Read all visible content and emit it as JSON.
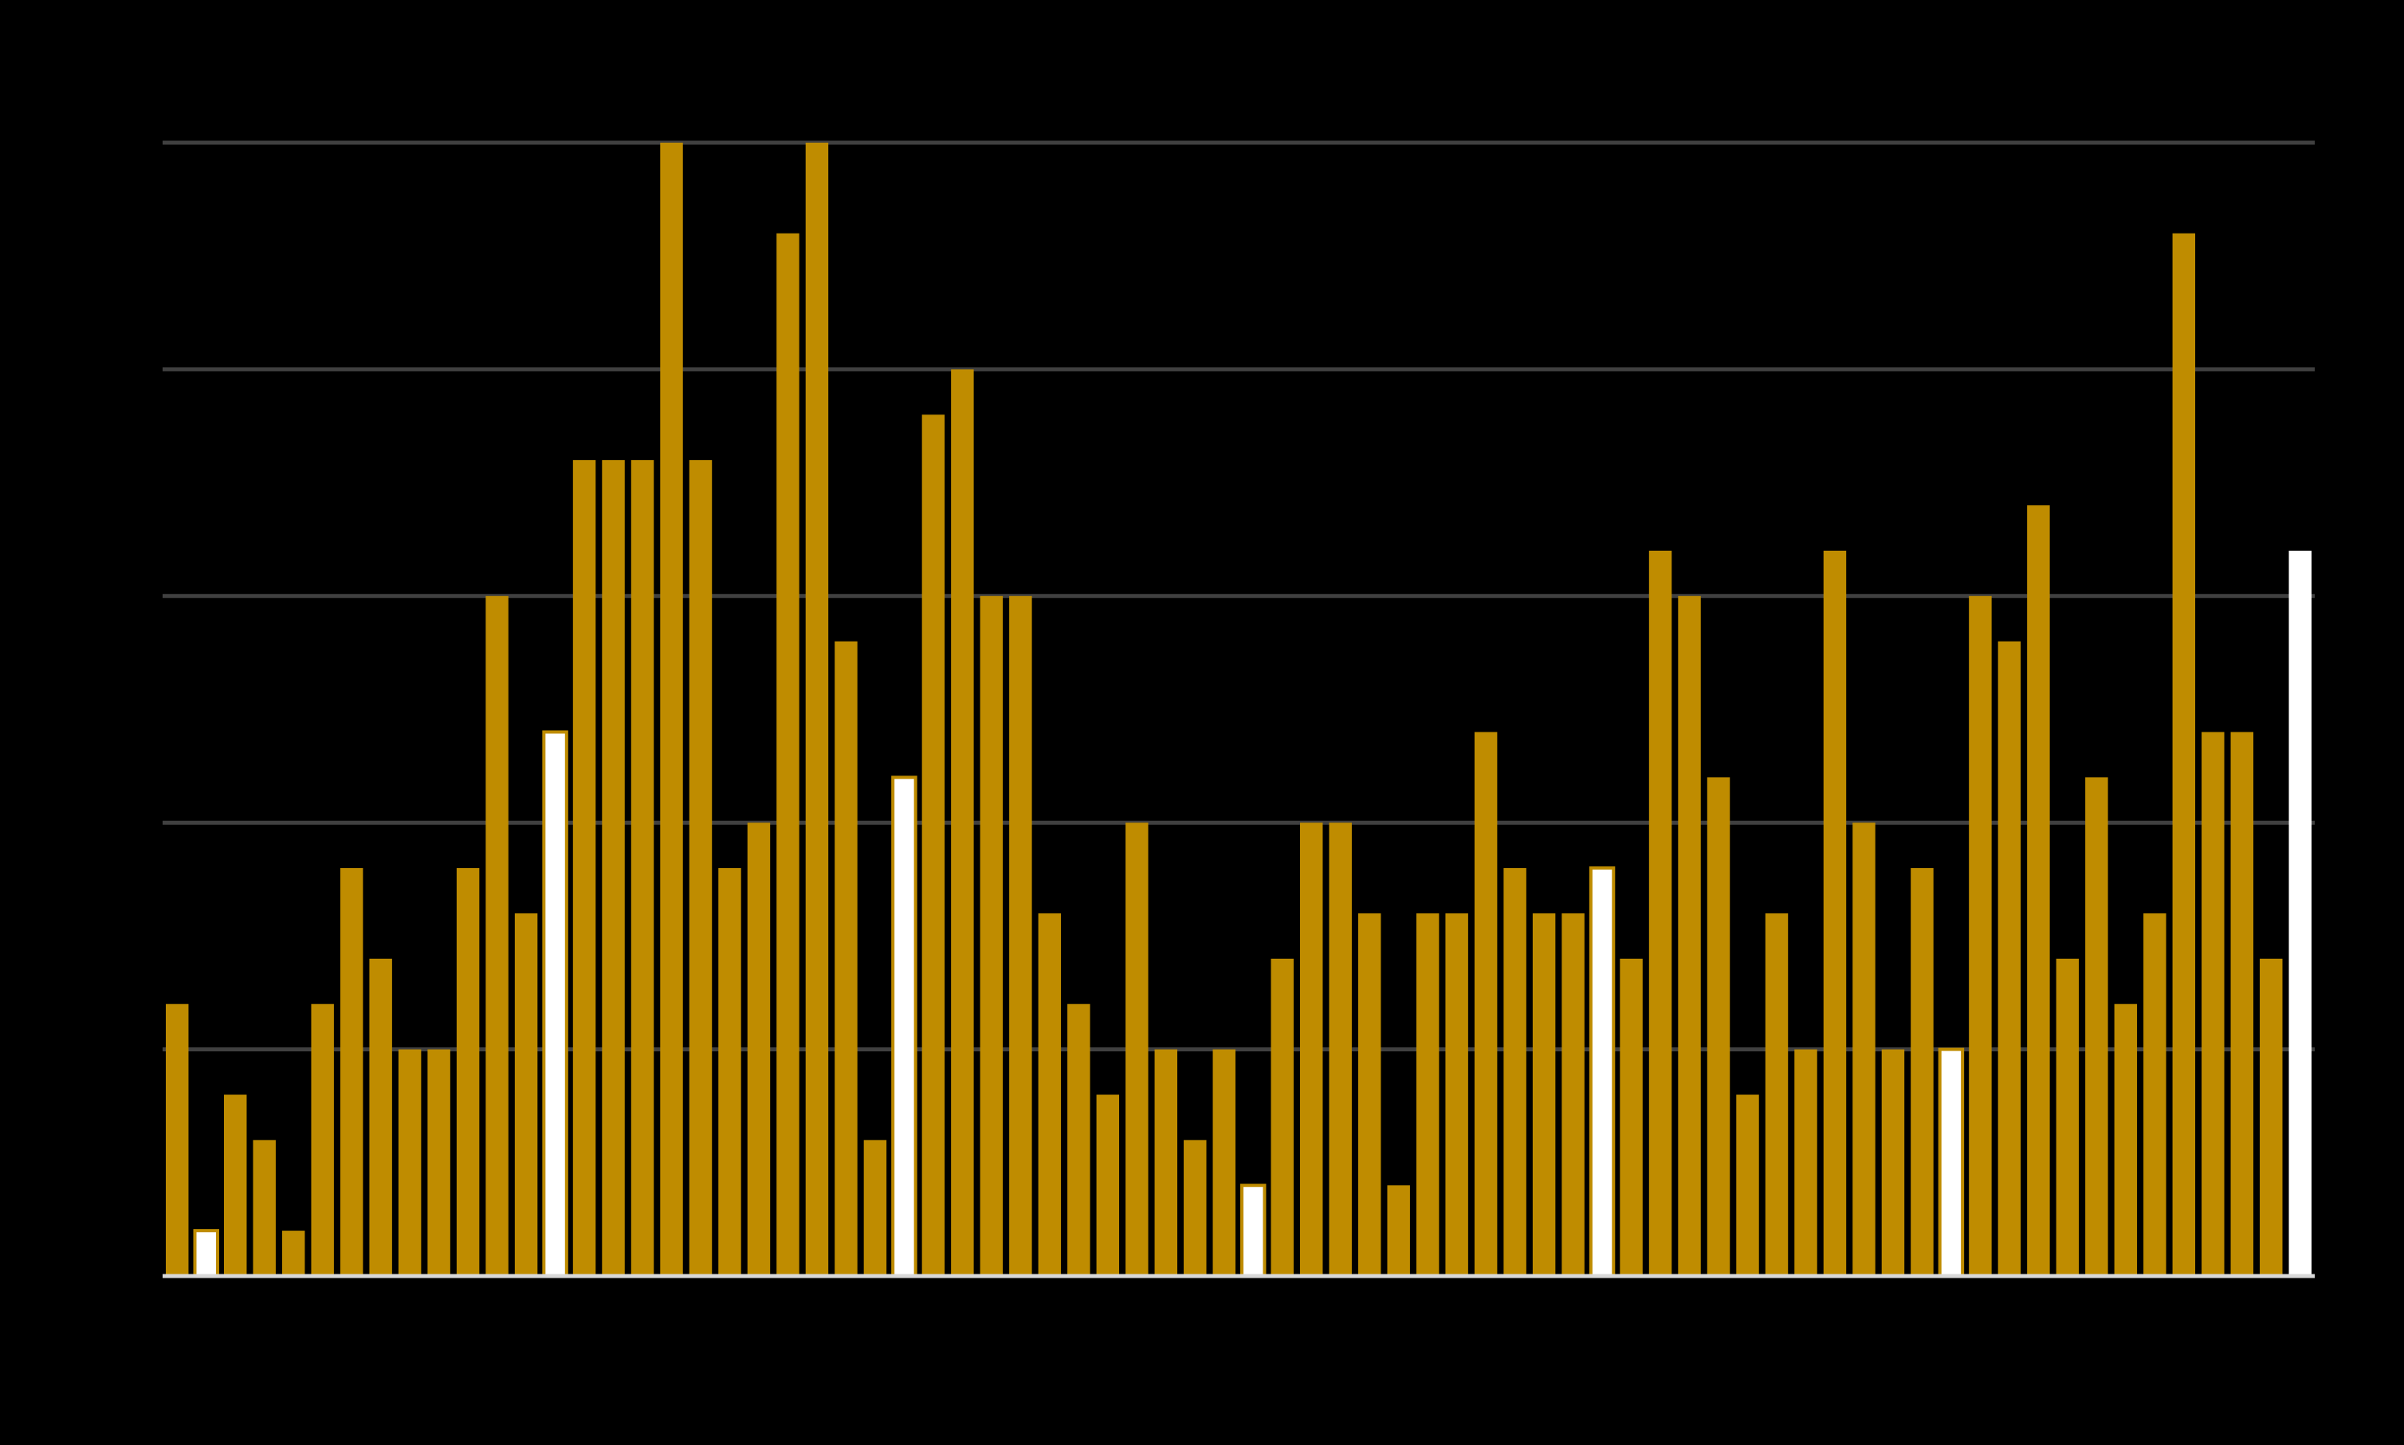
{
  "chart_data": {
    "type": "bar",
    "title": "",
    "xlabel": "",
    "ylabel": "",
    "ylim": [
      0,
      25
    ],
    "grid": true,
    "legend": "none",
    "colors": {
      "background": "#000000",
      "bar": "#BF8C00",
      "highlight": "#FFFFFF",
      "grid": "#404040",
      "axis": "#D9D9D9"
    },
    "values": [
      6,
      1,
      4,
      3,
      1,
      6,
      9,
      7,
      5,
      5,
      9,
      15,
      8,
      12,
      18,
      18,
      18,
      25,
      18,
      9,
      10,
      23,
      25,
      14,
      3,
      11,
      19,
      20,
      15,
      15,
      8,
      6,
      4,
      10,
      5,
      3,
      5,
      2,
      7,
      10,
      10,
      8,
      2,
      8,
      8,
      12,
      9,
      8,
      8,
      9,
      7,
      16,
      15,
      11,
      4,
      8,
      5,
      16,
      10,
      5,
      9,
      5,
      15,
      14,
      17,
      7,
      11,
      6,
      8,
      23,
      12,
      12,
      7,
      16
    ],
    "highlighted": [
      1,
      13,
      25,
      37,
      49,
      61,
      73
    ]
  }
}
